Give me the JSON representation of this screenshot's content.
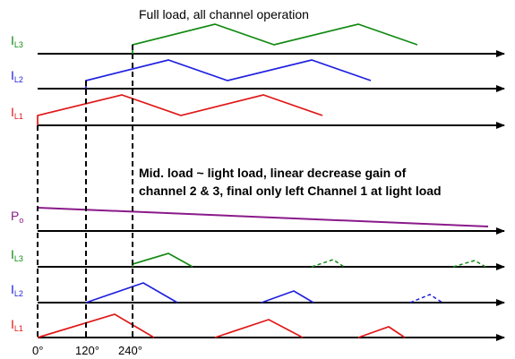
{
  "title": "Full load, all channel operation",
  "note_line1": "Mid. load ~ light load, linear decrease gain of",
  "note_line2": "channel 2 & 3, final only left Channel 1 at light load",
  "full_load": {
    "il3": {
      "main": "I",
      "sub": "L3",
      "color": "#128a12"
    },
    "il2": {
      "main": "I",
      "sub": "L2",
      "color": "#1f1fe0"
    },
    "il1": {
      "main": "I",
      "sub": "L1",
      "color": "#e01818"
    }
  },
  "light_load": {
    "po": {
      "main": "P",
      "sub": "o",
      "color": "#8a1a8a"
    },
    "il3": {
      "main": "I",
      "sub": "L3",
      "color": "#128a12"
    },
    "il2": {
      "main": "I",
      "sub": "L2",
      "color": "#1f1fe0"
    },
    "il1": {
      "main": "I",
      "sub": "L1",
      "color": "#e01818"
    }
  },
  "phase_labels": {
    "p0": "0°",
    "p120": "120°",
    "p240": "240°"
  }
}
